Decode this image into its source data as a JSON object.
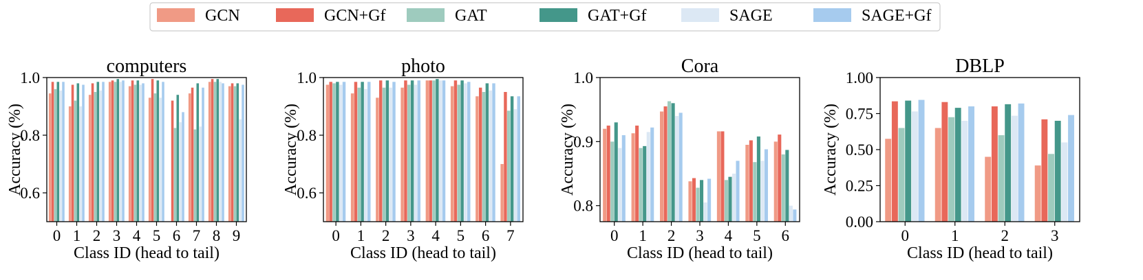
{
  "legend": {
    "entries": [
      {
        "label": "GCN",
        "color": "#f09a85"
      },
      {
        "label": "GCN+Gf",
        "color": "#e8685a"
      },
      {
        "label": "GAT",
        "color": "#9ecbbe"
      },
      {
        "label": "GAT+Gf",
        "color": "#44978a"
      },
      {
        "label": "SAGE",
        "color": "#dce8f4"
      },
      {
        "label": "SAGE+Gf",
        "color": "#a6cbee"
      }
    ]
  },
  "chart_data": [
    {
      "type": "bar",
      "title": "computers",
      "xlabel": "Class ID (head to tail)",
      "ylabel": "Accuracy (%)",
      "ylim": [
        0.5,
        1.0
      ],
      "yticks": [
        0.6,
        0.8,
        1.0
      ],
      "ytick_labels": [
        "0.6",
        "0.8",
        "1.0"
      ],
      "categories": [
        "0",
        "1",
        "2",
        "3",
        "4",
        "5",
        "6",
        "7",
        "8",
        "9"
      ],
      "series": [
        {
          "name": "GCN",
          "values": [
            0.945,
            0.9,
            0.94,
            0.985,
            0.97,
            0.93,
            0.5,
            0.945,
            0.985,
            0.97
          ]
        },
        {
          "name": "GCN+Gf",
          "values": [
            0.985,
            0.975,
            0.98,
            0.99,
            0.99,
            0.995,
            0.92,
            0.965,
            0.995,
            0.98
          ]
        },
        {
          "name": "GAT",
          "values": [
            0.96,
            0.92,
            0.95,
            0.985,
            0.975,
            0.945,
            0.825,
            0.82,
            0.985,
            0.97
          ]
        },
        {
          "name": "GAT+Gf",
          "values": [
            0.985,
            0.98,
            0.985,
            0.995,
            0.99,
            0.99,
            0.94,
            0.98,
            0.995,
            0.98
          ]
        },
        {
          "name": "SAGE",
          "values": [
            0.955,
            0.9,
            0.955,
            0.985,
            0.975,
            0.93,
            0.845,
            0.83,
            0.985,
            0.855
          ]
        },
        {
          "name": "SAGE+Gf",
          "values": [
            0.985,
            0.975,
            0.985,
            0.99,
            0.98,
            0.985,
            0.88,
            0.965,
            0.98,
            0.975
          ]
        }
      ]
    },
    {
      "type": "bar",
      "title": "photo",
      "xlabel": "Class ID (head to tail)",
      "ylabel": "Accuracy (%)",
      "ylim": [
        0.5,
        1.0
      ],
      "yticks": [
        0.6,
        0.8,
        1.0
      ],
      "ytick_labels": [
        "0.6",
        "0.8",
        "1.0"
      ],
      "categories": [
        "0",
        "1",
        "2",
        "3",
        "4",
        "5",
        "6",
        "7"
      ],
      "series": [
        {
          "name": "GCN",
          "values": [
            0.975,
            0.945,
            0.93,
            0.965,
            0.99,
            0.97,
            0.935,
            0.7
          ]
        },
        {
          "name": "GCN+Gf",
          "values": [
            0.985,
            0.985,
            0.99,
            0.99,
            0.99,
            0.99,
            0.965,
            0.95
          ]
        },
        {
          "name": "GAT",
          "values": [
            0.98,
            0.965,
            0.965,
            0.975,
            0.99,
            0.975,
            0.95,
            0.885
          ]
        },
        {
          "name": "GAT+Gf",
          "values": [
            0.985,
            0.985,
            0.99,
            0.99,
            0.995,
            0.99,
            0.98,
            0.935
          ]
        },
        {
          "name": "SAGE",
          "values": [
            0.975,
            0.96,
            0.965,
            0.975,
            0.99,
            0.98,
            0.955,
            0.89
          ]
        },
        {
          "name": "SAGE+Gf",
          "values": [
            0.985,
            0.985,
            0.985,
            0.99,
            0.99,
            0.985,
            0.98,
            0.935
          ]
        }
      ]
    },
    {
      "type": "bar",
      "title": "Cora",
      "xlabel": "Class ID (head to tail)",
      "ylabel": "Accuracy (%)",
      "ylim": [
        0.775,
        1.0
      ],
      "yticks": [
        0.8,
        0.9,
        1.0
      ],
      "ytick_labels": [
        "0.8",
        "0.9",
        "1.0"
      ],
      "categories": [
        "0",
        "1",
        "2",
        "3",
        "4",
        "5",
        "6"
      ],
      "series": [
        {
          "name": "GCN",
          "values": [
            0.92,
            0.913,
            0.947,
            0.838,
            0.916,
            0.895,
            0.9
          ]
        },
        {
          "name": "GCN+Gf",
          "values": [
            0.925,
            0.925,
            0.955,
            0.843,
            0.916,
            0.902,
            0.911
          ]
        },
        {
          "name": "GAT",
          "values": [
            0.9,
            0.89,
            0.963,
            0.828,
            0.84,
            0.868,
            0.88
          ]
        },
        {
          "name": "GAT+Gf",
          "values": [
            0.93,
            0.893,
            0.96,
            0.84,
            0.845,
            0.908,
            0.887
          ]
        },
        {
          "name": "SAGE",
          "values": [
            0.89,
            0.915,
            0.94,
            0.805,
            0.85,
            0.87,
            0.8
          ]
        },
        {
          "name": "SAGE+Gf",
          "values": [
            0.91,
            0.922,
            0.945,
            0.842,
            0.87,
            0.888,
            0.794
          ]
        }
      ]
    },
    {
      "type": "bar",
      "title": "DBLP",
      "xlabel": "Class ID (head to tail)",
      "ylabel": "Accuracy (%)",
      "ylim": [
        0.0,
        1.0
      ],
      "yticks": [
        0.0,
        0.25,
        0.5,
        0.75,
        1.0
      ],
      "ytick_labels": [
        "0.00",
        "0.25",
        "0.50",
        "0.75",
        "1.00"
      ],
      "categories": [
        "0",
        "1",
        "2",
        "3"
      ],
      "series": [
        {
          "name": "GCN",
          "values": [
            0.575,
            0.65,
            0.45,
            0.39
          ]
        },
        {
          "name": "GCN+Gf",
          "values": [
            0.835,
            0.83,
            0.8,
            0.71
          ]
        },
        {
          "name": "GAT",
          "values": [
            0.65,
            0.725,
            0.6,
            0.47
          ]
        },
        {
          "name": "GAT+Gf",
          "values": [
            0.84,
            0.79,
            0.815,
            0.7
          ]
        },
        {
          "name": "SAGE",
          "values": [
            0.765,
            0.7,
            0.735,
            0.55
          ]
        },
        {
          "name": "SAGE+Gf",
          "values": [
            0.845,
            0.8,
            0.82,
            0.74
          ]
        }
      ]
    }
  ]
}
